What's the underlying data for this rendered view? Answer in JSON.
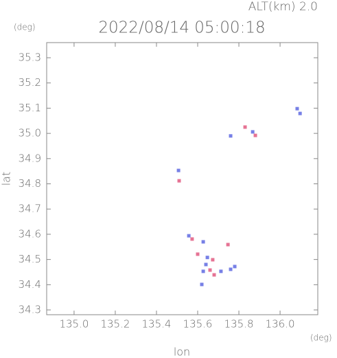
{
  "chart_data": {
    "type": "scatter",
    "title": "2022/08/14 05:00:18",
    "annotation": "ALT(km) 2.0",
    "y_unit": "(deg)",
    "x_unit": "(deg)",
    "x_label": "lon",
    "y_label": "lat",
    "xlim": [
      134.867,
      136.183
    ],
    "ylim": [
      34.281,
      35.36
    ],
    "xticks": [
      {
        "value": 135.0,
        "label": "135.0"
      },
      135.2,
      135.4,
      135.6,
      135.8,
      {
        "value": 136.0,
        "label": "136.0"
      }
    ],
    "yticks": [
      35.3,
      35.2,
      35.1,
      {
        "value": 35.0,
        "label": "35.0"
      },
      34.9,
      34.8,
      34.7,
      34.6,
      34.5,
      34.4,
      34.3
    ],
    "series": [
      {
        "color": "#4a55dd",
        "x": [
          136.083,
          136.097,
          135.867,
          135.76,
          135.507,
          135.557,
          135.627,
          135.647,
          135.627,
          135.713,
          135.76,
          135.78,
          135.62,
          135.64
        ],
        "y": [
          35.098,
          35.079,
          35.006,
          34.99,
          34.853,
          34.594,
          34.57,
          34.508,
          34.453,
          34.453,
          34.461,
          34.472,
          34.401,
          34.48
        ]
      },
      {
        "color": "#dd4470",
        "x": [
          135.83,
          135.88,
          135.51,
          135.573,
          135.747,
          135.6,
          135.673,
          135.66,
          135.68
        ],
        "y": [
          35.025,
          34.992,
          34.812,
          34.581,
          34.559,
          34.521,
          34.499,
          34.458,
          34.439
        ]
      }
    ]
  }
}
